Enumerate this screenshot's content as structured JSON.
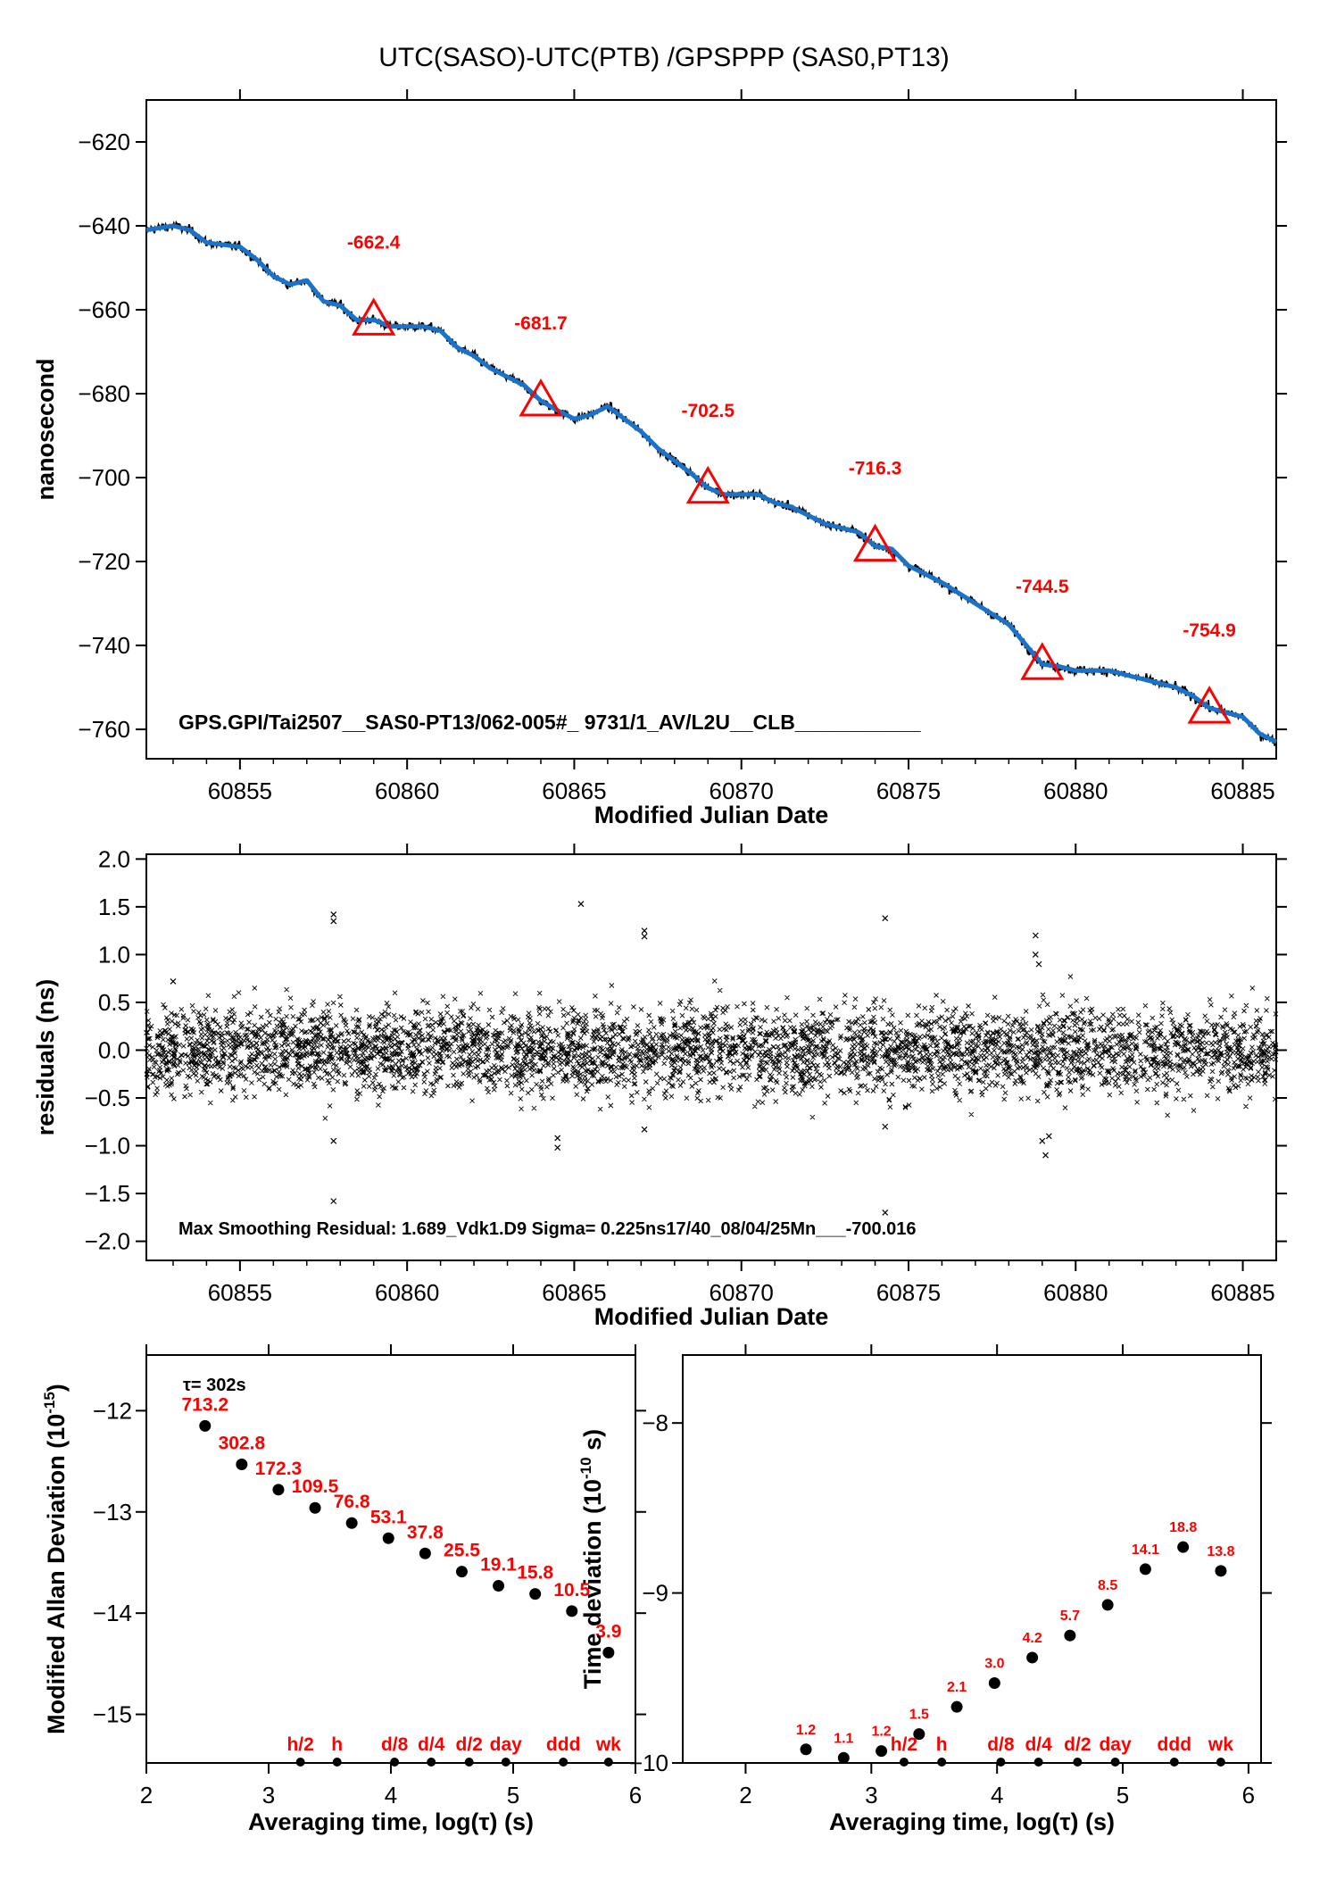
{
  "page": {
    "title": "UTC(SASO)-UTC(PTB)  /GPSPPP  (SAS0,PT13)"
  },
  "colors": {
    "series": "#1a73c9",
    "marker": "#ff0000",
    "points": "#000000"
  },
  "chart_data": [
    {
      "id": "time-series",
      "type": "line",
      "ylabel": "nanosecond",
      "xlabel": "Modified Julian Date",
      "xlim": [
        60852.2,
        60886
      ],
      "ylim": [
        -767,
        -610
      ],
      "xticks": [
        60855,
        60860,
        60865,
        60870,
        60875,
        60880,
        60885
      ],
      "yticks": [
        -620,
        -640,
        -660,
        -680,
        -700,
        -720,
        -740,
        -760
      ],
      "x": [
        60852.2,
        60853.0,
        60853.5,
        60854,
        60855,
        60855.5,
        60856,
        60856.5,
        60857,
        60857.5,
        60858,
        60858.5,
        60859,
        60859.5,
        60860,
        60860.5,
        60861,
        60861.5,
        60862,
        60862.5,
        60863,
        60863.5,
        60864,
        60864.5,
        60865,
        60865.5,
        60866,
        60866.5,
        60867,
        60867.5,
        60868,
        60868.5,
        60869,
        60869.5,
        60870,
        60870.5,
        60871,
        60871.5,
        60872,
        60872.5,
        60873,
        60873.5,
        60874,
        60874.5,
        60875,
        60876,
        60877,
        60878,
        60879,
        60879.5,
        60880,
        60880.5,
        60881,
        60881.5,
        60882,
        60882.5,
        60883,
        60883.5,
        60884,
        60884.5,
        60885,
        60885.5,
        60886
      ],
      "values": [
        -641,
        -640,
        -641,
        -644,
        -645,
        -648,
        -652,
        -654,
        -653,
        -658,
        -659,
        -662.5,
        -662.4,
        -664,
        -664,
        -664,
        -665,
        -669,
        -671,
        -674,
        -676,
        -678,
        -681.7,
        -684,
        -686,
        -685,
        -683,
        -686,
        -689,
        -693,
        -696,
        -699,
        -702.5,
        -704,
        -704,
        -704,
        -706,
        -707,
        -709,
        -711,
        -712,
        -713,
        -716.3,
        -717,
        -721,
        -725,
        -730,
        -735,
        -744.5,
        -745,
        -746,
        -746,
        -746,
        -747,
        -748,
        -749,
        -750,
        -752,
        -754.9,
        -756,
        -757,
        -761,
        -763
      ],
      "markers": [
        {
          "x": 60859,
          "y": -662.4,
          "label": "-662.4"
        },
        {
          "x": 60864,
          "y": -681.7,
          "label": "-681.7"
        },
        {
          "x": 60869,
          "y": -702.5,
          "label": "-702.5"
        },
        {
          "x": 60874,
          "y": -716.3,
          "label": "-716.3"
        },
        {
          "x": 60879,
          "y": -744.5,
          "label": "-744.5"
        },
        {
          "x": 60884,
          "y": -754.9,
          "label": "-754.9"
        }
      ],
      "annotation": "GPS.GPI/Tai2507__SAS0-PT13/062-005#_  9731/1_AV/L2U__CLB___________"
    },
    {
      "id": "residuals",
      "type": "scatter",
      "ylabel": "residuals (ns)",
      "xlabel": "Modified Julian Date",
      "xlim": [
        60852.2,
        60886
      ],
      "ylim": [
        -2.2,
        2.05
      ],
      "xticks": [
        60855,
        60860,
        60865,
        60870,
        60875,
        60880,
        60885
      ],
      "yticks": [
        "2.0",
        "1.5",
        "1.0",
        "0.5",
        "0.0",
        "-0.5",
        "-1.0",
        "-1.5",
        "-2.0"
      ],
      "sigma": 0.225,
      "outliers": [
        {
          "x": 60857.8,
          "y": 1.42
        },
        {
          "x": 60857.8,
          "y": 1.35
        },
        {
          "x": 60857.8,
          "y": -0.95
        },
        {
          "x": 60857.8,
          "y": -1.58
        },
        {
          "x": 60865.2,
          "y": 1.53
        },
        {
          "x": 60867.1,
          "y": 1.25
        },
        {
          "x": 60867.1,
          "y": 1.19
        },
        {
          "x": 60867.1,
          "y": -0.83
        },
        {
          "x": 60874.3,
          "y": 1.38
        },
        {
          "x": 60874.3,
          "y": -0.8
        },
        {
          "x": 60874.3,
          "y": -1.7
        },
        {
          "x": 60864.5,
          "y": -0.92
        },
        {
          "x": 60864.5,
          "y": -1.02
        },
        {
          "x": 60878.8,
          "y": 1.2
        },
        {
          "x": 60878.8,
          "y": 1.0
        },
        {
          "x": 60879.0,
          "y": -0.95
        },
        {
          "x": 60879.1,
          "y": -1.1
        },
        {
          "x": 60879.2,
          "y": -0.9
        },
        {
          "x": 60853.0,
          "y": 0.72
        },
        {
          "x": 60878.9,
          "y": 0.9
        }
      ],
      "annotation": "Max Smoothing Residual: 1.689_Vdk1.D9  Sigma= 0.225ns17/40_08/04/25Mn___-700.016"
    },
    {
      "id": "mdev",
      "type": "scatter",
      "ylabel": "Modified Allan Deviation (10",
      "ylabel_exp": "-15",
      "ylabel_end": ")",
      "xlabel": "Averaging time, log(τ) (s)",
      "xlim": [
        2,
        6
      ],
      "ylim": [
        -15.48,
        -11.45
      ],
      "xticks": [
        2,
        3,
        4,
        5,
        6
      ],
      "yticks": [
        "-12",
        "-13",
        "-14",
        "-15"
      ],
      "tau_note": "τ= 302s",
      "x": [
        2.48,
        2.78,
        3.08,
        3.38,
        3.68,
        3.98,
        4.28,
        4.58,
        4.88,
        5.18,
        5.48,
        5.78
      ],
      "values": [
        -12.15,
        -12.53,
        -12.78,
        -12.96,
        -13.11,
        -13.26,
        -13.41,
        -13.59,
        -13.73,
        -13.81,
        -13.98,
        -14.39
      ],
      "labels": [
        "713.2",
        "302.8",
        "172.3",
        "109.5",
        "76.8",
        "53.1",
        "37.8",
        "25.5",
        "19.1",
        "15.8",
        "10.5",
        "3.9"
      ],
      "time_marks": [
        {
          "x": 3.26,
          "label": "h/2"
        },
        {
          "x": 3.56,
          "label": "h"
        },
        {
          "x": 4.03,
          "label": "d/8"
        },
        {
          "x": 4.33,
          "label": "d/4"
        },
        {
          "x": 4.64,
          "label": "d/2"
        },
        {
          "x": 4.94,
          "label": "day"
        },
        {
          "x": 5.41,
          "label": "ddd"
        },
        {
          "x": 5.78,
          "label": "wk"
        }
      ]
    },
    {
      "id": "tdev",
      "type": "scatter",
      "ylabel": "Time deviation (10",
      "ylabel_exp": "-10",
      "ylabel_end": " s)",
      "xlabel": "Averaging time, log(τ) (s)",
      "xlim": [
        1.5,
        6.1
      ],
      "ylim": [
        -10.0,
        -7.6
      ],
      "xticks": [
        2,
        3,
        4,
        5,
        6
      ],
      "yticks": [
        "-8",
        "-9",
        "-10"
      ],
      "x": [
        2.48,
        2.78,
        3.08,
        3.38,
        3.68,
        3.98,
        4.28,
        4.58,
        4.88,
        5.18,
        5.48,
        5.78
      ],
      "values": [
        -9.92,
        -9.97,
        -9.93,
        -9.83,
        -9.67,
        -9.53,
        -9.38,
        -9.25,
        -9.07,
        -8.86,
        -8.73,
        -8.87
      ],
      "labels": [
        "1.2",
        "1.1",
        "1.2",
        "1.5",
        "2.1",
        "3.0",
        "4.2",
        "5.7",
        "8.5",
        "14.1",
        "18.8",
        "13.8"
      ],
      "time_marks": [
        {
          "x": 3.26,
          "label": "h/2"
        },
        {
          "x": 3.56,
          "label": "h"
        },
        {
          "x": 4.03,
          "label": "d/8"
        },
        {
          "x": 4.33,
          "label": "d/4"
        },
        {
          "x": 4.64,
          "label": "d/2"
        },
        {
          "x": 4.94,
          "label": "day"
        },
        {
          "x": 5.41,
          "label": "ddd"
        },
        {
          "x": 5.78,
          "label": "wk"
        }
      ]
    }
  ]
}
